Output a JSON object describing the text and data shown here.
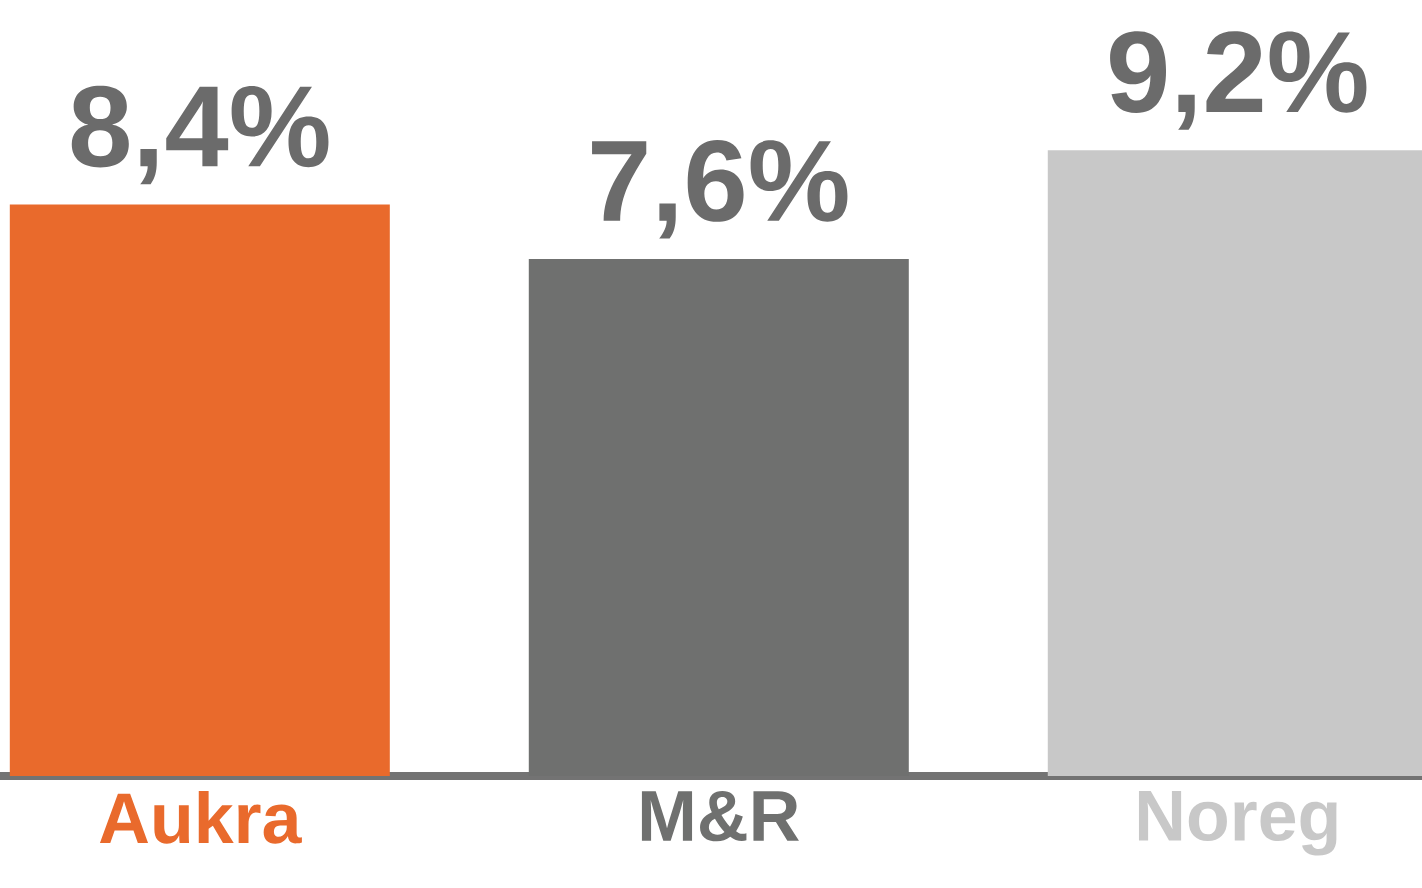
{
  "chart_data": {
    "type": "bar",
    "categories": [
      "Aukra",
      "M&R",
      "Noreg"
    ],
    "values": [
      8.4,
      7.6,
      9.2
    ],
    "colors": [
      "#e96a2c",
      "#6f706f",
      "#c8c8c8"
    ],
    "value_labels": [
      "8,4%",
      "7,6%",
      "9,2%"
    ]
  }
}
